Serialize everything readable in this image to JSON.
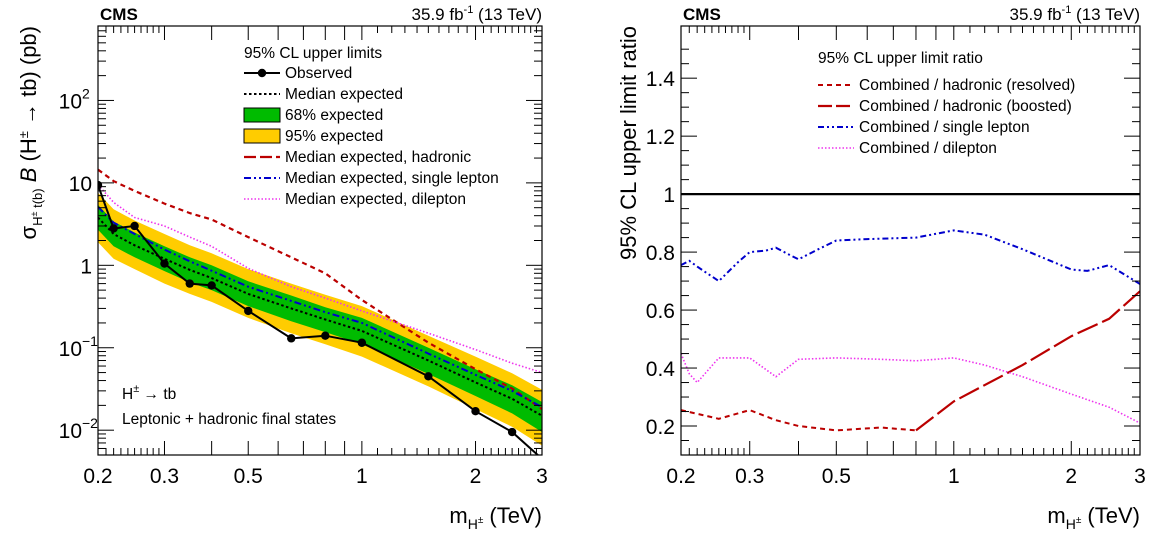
{
  "chart_data": [
    {
      "type": "line",
      "experiment": "CMS",
      "lumi": "35.9 fb",
      "lumi_sup": "-1",
      "energy": "(13 TeV)",
      "xlabel_main": "m",
      "xlabel_sub": "H",
      "xlabel_subsup": "±",
      "xlabel_unit": "(TeV)",
      "ylabel_sigma": "σ",
      "ylabel_sub": "H",
      "ylabel_subsup": "±",
      "ylabel_sub2": "t(b)",
      "ylabel_B": "B",
      "ylabel_rest1": "(H",
      "ylabel_rest_sup": "±",
      "ylabel_rest2": "→ tb) (pb)",
      "xscale": "log",
      "yscale": "log",
      "xlim": [
        0.2,
        3.0
      ],
      "ylim": [
        0.005,
        800
      ],
      "x_ticks": [
        {
          "v": 0.2,
          "label": "0.2"
        },
        {
          "v": 0.3,
          "label": "0.3"
        },
        {
          "v": 0.5,
          "label": "0.5"
        },
        {
          "v": 1,
          "label": "1"
        },
        {
          "v": 2,
          "label": "2"
        },
        {
          "v": 3,
          "label": "3"
        }
      ],
      "y_ticks": [
        {
          "v": 0.01,
          "base": "10",
          "exp": "−2"
        },
        {
          "v": 0.1,
          "base": "10",
          "exp": "−1"
        },
        {
          "v": 1,
          "base": "1",
          "exp": ""
        },
        {
          "v": 10,
          "base": "10",
          "exp": ""
        },
        {
          "v": 100,
          "base": "10",
          "exp": "2"
        }
      ],
      "legend_title": "95% CL upper limits",
      "legend": {
        "observed": "Observed",
        "median": "Median expected",
        "band68": "68% expected",
        "band95": "95% expected",
        "hadronic": "Median expected, hadronic",
        "single_lepton": "Median expected, single lepton",
        "dilepton": "Median expected, dilepton"
      },
      "annotation_line1_a": "H",
      "annotation_line1_sup": "±",
      "annotation_line1_b": "→ tb",
      "annotation_line2": "Leptonic + hadronic final states",
      "colors": {
        "observed": "#000000",
        "band68": "#00bb00",
        "band95": "#ffcc00",
        "hadronic": "#bb0000",
        "single_lepton": "#0000cc",
        "dilepton": "#ee33ee"
      },
      "mass": [
        0.2,
        0.22,
        0.25,
        0.3,
        0.35,
        0.4,
        0.5,
        0.65,
        0.8,
        1.0,
        1.5,
        2.0,
        2.5,
        3.0
      ],
      "observed": [
        9.4,
        2.8,
        3.0,
        1.05,
        0.6,
        0.57,
        0.28,
        0.13,
        0.14,
        0.115,
        0.045,
        0.017,
        0.0095,
        0.0045
      ],
      "median_expected": [
        3.8,
        2.4,
        1.75,
        1.2,
        0.88,
        0.7,
        0.45,
        0.3,
        0.22,
        0.16,
        0.07,
        0.038,
        0.024,
        0.015
      ],
      "band68_low": [
        2.7,
        1.7,
        1.25,
        0.85,
        0.62,
        0.5,
        0.32,
        0.21,
        0.155,
        0.11,
        0.048,
        0.026,
        0.016,
        0.0095
      ],
      "band68_high": [
        5.4,
        3.4,
        2.5,
        1.7,
        1.25,
        1.0,
        0.64,
        0.43,
        0.31,
        0.23,
        0.1,
        0.055,
        0.035,
        0.022
      ],
      "band95_low": [
        1.9,
        1.2,
        0.9,
        0.6,
        0.45,
        0.36,
        0.23,
        0.15,
        0.11,
        0.078,
        0.034,
        0.018,
        0.011,
        0.0065
      ],
      "band95_high": [
        7.6,
        4.8,
        3.5,
        2.4,
        1.75,
        1.4,
        0.9,
        0.6,
        0.44,
        0.32,
        0.14,
        0.078,
        0.049,
        0.031
      ],
      "hadronic_expected": [
        14.5,
        10.5,
        8.0,
        5.6,
        4.3,
        3.6,
        2.2,
        1.25,
        0.8,
        0.38,
        0.115,
        0.055,
        0.032,
        0.018
      ],
      "single_lepton_expected": [
        5.1,
        3.3,
        2.4,
        1.55,
        1.12,
        0.86,
        0.55,
        0.37,
        0.27,
        0.2,
        0.085,
        0.047,
        0.03,
        0.019
      ],
      "dilepton_expected": [
        9.5,
        5.8,
        3.8,
        3.0,
        2.2,
        1.7,
        0.92,
        0.55,
        0.4,
        0.28,
        0.15,
        0.095,
        0.065,
        0.05
      ]
    },
    {
      "type": "line",
      "experiment": "CMS",
      "lumi": "35.9 fb",
      "lumi_sup": "-1",
      "energy": "(13 TeV)",
      "xlabel_main": "m",
      "xlabel_sub": "H",
      "xlabel_subsup": "±",
      "xlabel_unit": "(TeV)",
      "ylabel": "95% CL upper limit ratio",
      "xscale": "log",
      "yscale": "linear",
      "xlim": [
        0.2,
        3.0
      ],
      "ylim": [
        0.1,
        1.58
      ],
      "x_ticks": [
        {
          "v": 0.2,
          "label": "0.2"
        },
        {
          "v": 0.3,
          "label": "0.3"
        },
        {
          "v": 0.5,
          "label": "0.5"
        },
        {
          "v": 1,
          "label": "1"
        },
        {
          "v": 2,
          "label": "2"
        },
        {
          "v": 3,
          "label": "3"
        }
      ],
      "y_ticks": [
        {
          "v": 0.2,
          "label": "0.2"
        },
        {
          "v": 0.4,
          "label": "0.4"
        },
        {
          "v": 0.6,
          "label": "0.6"
        },
        {
          "v": 0.8,
          "label": "0.8"
        },
        {
          "v": 1.0,
          "label": "1"
        },
        {
          "v": 1.2,
          "label": "1.2"
        },
        {
          "v": 1.4,
          "label": "1.4"
        }
      ],
      "reference_line": 1.0,
      "legend_title": "95% CL upper limit ratio",
      "legend": {
        "resolved": "Combined / hadronic (resolved)",
        "boosted": "Combined / hadronic (boosted)",
        "single_lepton": "Combined / single lepton",
        "dilepton": "Combined / dilepton"
      },
      "colors": {
        "resolved": "#bb0000",
        "boosted": "#bb0000",
        "single_lepton": "#0000cc",
        "dilepton": "#ee33ee"
      },
      "resolved": {
        "x": [
          0.2,
          0.25,
          0.3,
          0.35,
          0.4,
          0.5,
          0.65,
          0.8
        ],
        "y": [
          0.255,
          0.225,
          0.255,
          0.22,
          0.2,
          0.185,
          0.195,
          0.185
        ]
      },
      "boosted": {
        "x": [
          0.8,
          1.0,
          1.5,
          2.0,
          2.5,
          3.0
        ],
        "y": [
          0.185,
          0.285,
          0.41,
          0.51,
          0.57,
          0.665
        ]
      },
      "single_lepton": {
        "x": [
          0.2,
          0.21,
          0.22,
          0.25,
          0.28,
          0.3,
          0.33,
          0.35,
          0.38,
          0.4,
          0.45,
          0.5,
          0.6,
          0.8,
          1.0,
          1.2,
          1.5,
          2.0,
          2.2,
          2.5,
          3.0
        ],
        "y": [
          0.755,
          0.77,
          0.75,
          0.7,
          0.765,
          0.8,
          0.805,
          0.815,
          0.79,
          0.775,
          0.81,
          0.84,
          0.845,
          0.85,
          0.875,
          0.86,
          0.81,
          0.74,
          0.735,
          0.755,
          0.69
        ]
      },
      "dilepton": {
        "x": [
          0.2,
          0.21,
          0.22,
          0.25,
          0.3,
          0.35,
          0.4,
          0.5,
          0.65,
          0.8,
          1.0,
          1.2,
          1.5,
          2.0,
          2.5,
          3.0
        ],
        "y": [
          0.45,
          0.38,
          0.35,
          0.435,
          0.435,
          0.37,
          0.43,
          0.435,
          0.43,
          0.425,
          0.435,
          0.41,
          0.37,
          0.31,
          0.265,
          0.21
        ]
      }
    }
  ]
}
